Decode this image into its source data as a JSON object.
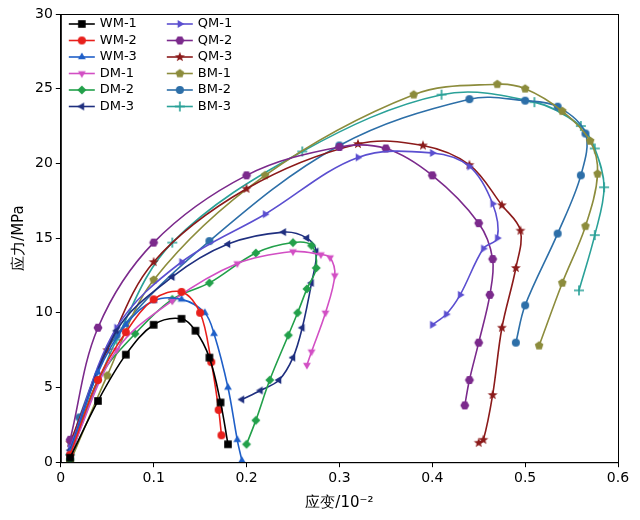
{
  "chart_data": {
    "type": "line",
    "x_label": "应变/10⁻²",
    "y_label": "应力/MPa",
    "xlim": [
      0,
      0.6
    ],
    "xticks": [
      0,
      0.1,
      0.2,
      0.3,
      0.4,
      0.5,
      0.6
    ],
    "ylim": [
      0,
      30
    ],
    "yticks": [
      0,
      5,
      10,
      15,
      20,
      25,
      30
    ],
    "grid": false,
    "legend": "upper left",
    "series": [
      {
        "name": "WM-1",
        "color": "#000000",
        "marker": "square",
        "x": [
          0.01,
          0.04,
          0.07,
          0.1,
          0.13,
          0.145,
          0.16,
          0.172,
          0.18
        ],
        "values": [
          0.3,
          4.1,
          7.2,
          9.2,
          9.6,
          8.8,
          7.0,
          4.0,
          1.2
        ]
      },
      {
        "name": "WM-2",
        "color": "#e8201c",
        "marker": "circle",
        "x": [
          0.01,
          0.04,
          0.07,
          0.1,
          0.13,
          0.15,
          0.162,
          0.17,
          0.173
        ],
        "values": [
          0.5,
          5.5,
          8.7,
          10.9,
          11.4,
          10.0,
          6.7,
          3.5,
          1.8
        ]
      },
      {
        "name": "WM-3",
        "color": "#1f5fc8",
        "marker": "triangle_up",
        "x": [
          0.01,
          0.04,
          0.07,
          0.1,
          0.13,
          0.155,
          0.165,
          0.18,
          0.19,
          0.195
        ],
        "values": [
          0.7,
          6.0,
          9.2,
          10.8,
          10.9,
          10.0,
          8.6,
          5.0,
          1.5,
          0.1
        ]
      },
      {
        "name": "DM-1",
        "color": "#d24fc4",
        "marker": "triangle_down",
        "x": [
          0.01,
          0.06,
          0.12,
          0.19,
          0.25,
          0.28,
          0.29,
          0.295,
          0.285,
          0.27,
          0.265
        ],
        "values": [
          0.5,
          7.5,
          10.8,
          13.3,
          14.1,
          13.9,
          13.7,
          12.5,
          10.0,
          7.4,
          6.5
        ]
      },
      {
        "name": "DM-2",
        "color": "#22a04a",
        "marker": "diamond",
        "x": [
          0.01,
          0.04,
          0.08,
          0.12,
          0.16,
          0.21,
          0.25,
          0.27,
          0.275,
          0.265,
          0.255,
          0.245,
          0.225,
          0.21,
          0.2
        ],
        "values": [
          0.2,
          5.5,
          8.6,
          10.9,
          12.0,
          14.0,
          14.7,
          14.5,
          13.0,
          11.6,
          10.0,
          8.5,
          5.5,
          2.8,
          1.2
        ]
      },
      {
        "name": "DM-3",
        "color": "#1f2f7f",
        "marker": "triangle_left",
        "x": [
          0.01,
          0.06,
          0.12,
          0.18,
          0.24,
          0.265,
          0.275,
          0.27,
          0.26,
          0.25,
          0.235,
          0.215,
          0.195
        ],
        "values": [
          0.8,
          8.8,
          12.4,
          14.6,
          15.4,
          15.0,
          14.1,
          12.0,
          9.0,
          7.0,
          5.5,
          4.8,
          4.2
        ]
      },
      {
        "name": "QM-1",
        "color": "#5b4fd0",
        "marker": "triangle_right",
        "x": [
          0.01,
          0.06,
          0.13,
          0.22,
          0.32,
          0.4,
          0.44,
          0.465,
          0.47,
          0.455,
          0.43,
          0.415,
          0.4
        ],
        "values": [
          1.0,
          9.0,
          13.4,
          16.6,
          20.4,
          20.7,
          19.8,
          17.3,
          15.0,
          14.3,
          11.2,
          9.9,
          9.2
        ]
      },
      {
        "name": "QM-2",
        "color": "#7b2a8c",
        "marker": "hexagon",
        "x": [
          0.01,
          0.04,
          0.1,
          0.2,
          0.3,
          0.35,
          0.4,
          0.45,
          0.465,
          0.462,
          0.45,
          0.44,
          0.435
        ],
        "values": [
          1.5,
          9.0,
          14.7,
          19.2,
          21.1,
          21.0,
          19.2,
          16.0,
          13.6,
          11.2,
          8.0,
          5.5,
          3.8
        ]
      },
      {
        "name": "QM-3",
        "color": "#8b1a1a",
        "marker": "star",
        "x": [
          0.01,
          0.05,
          0.1,
          0.2,
          0.32,
          0.39,
          0.44,
          0.475,
          0.495,
          0.49,
          0.475,
          0.465,
          0.455,
          0.45
        ],
        "values": [
          1.3,
          7.5,
          13.4,
          18.3,
          21.3,
          21.2,
          19.9,
          17.2,
          15.5,
          13.0,
          9.0,
          4.5,
          1.5,
          1.3
        ]
      },
      {
        "name": "BM-1",
        "color": "#8c8c3c",
        "marker": "pentagon",
        "x": [
          0.01,
          0.05,
          0.1,
          0.22,
          0.38,
          0.47,
          0.5,
          0.54,
          0.57,
          0.578,
          0.565,
          0.54,
          0.515
        ],
        "values": [
          0.0,
          5.8,
          12.2,
          19.2,
          24.6,
          25.3,
          25.0,
          23.5,
          21.5,
          19.3,
          15.8,
          12.0,
          7.8
        ]
      },
      {
        "name": "BM-2",
        "color": "#2d6fa8",
        "marker": "circle",
        "x": [
          0.01,
          0.02,
          0.06,
          0.16,
          0.3,
          0.44,
          0.5,
          0.535,
          0.565,
          0.56,
          0.535,
          0.5,
          0.49
        ],
        "values": [
          0.2,
          3.0,
          8.5,
          14.8,
          21.2,
          24.3,
          24.2,
          23.8,
          22.0,
          19.2,
          15.3,
          10.5,
          8.0
        ]
      },
      {
        "name": "BM-3",
        "color": "#2aa198",
        "marker": "plus",
        "x": [
          0.01,
          0.06,
          0.12,
          0.26,
          0.41,
          0.51,
          0.56,
          0.575,
          0.585,
          0.575,
          0.558
        ],
        "values": [
          0.5,
          8.2,
          14.7,
          20.8,
          24.6,
          24.1,
          22.5,
          21.0,
          18.4,
          15.2,
          11.5
        ]
      }
    ]
  }
}
